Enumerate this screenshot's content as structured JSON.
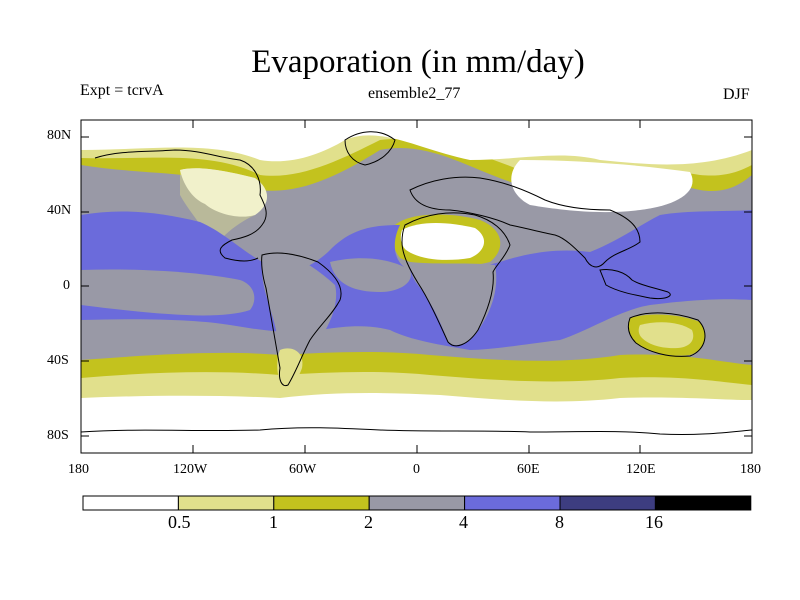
{
  "title": "Evaporation (in mm/day)",
  "experiment_label": "Expt = tcrvA",
  "run_label": "ensemble2_77",
  "season_label": "DJF",
  "lat_ticks": [
    "80N",
    "40N",
    "0",
    "40S",
    "80S"
  ],
  "lon_ticks": [
    "180",
    "120W",
    "60W",
    "0",
    "60E",
    "120E",
    "180"
  ],
  "legend": {
    "labels": [
      "0.5",
      "1",
      "2",
      "4",
      "8",
      "16"
    ],
    "colors": [
      "#ffffff",
      "#e1e08c",
      "#c3c21e",
      "#9999a6",
      "#6b6bdb",
      "#3d3d80",
      "#000000"
    ]
  },
  "colors": {
    "ocean_mid": "#6b6bdb",
    "ocean_low": "#9999a6",
    "subpolar": "#c3c21e",
    "polar_fringe": "#e1e08c",
    "dry_land": "#ffffff"
  }
}
